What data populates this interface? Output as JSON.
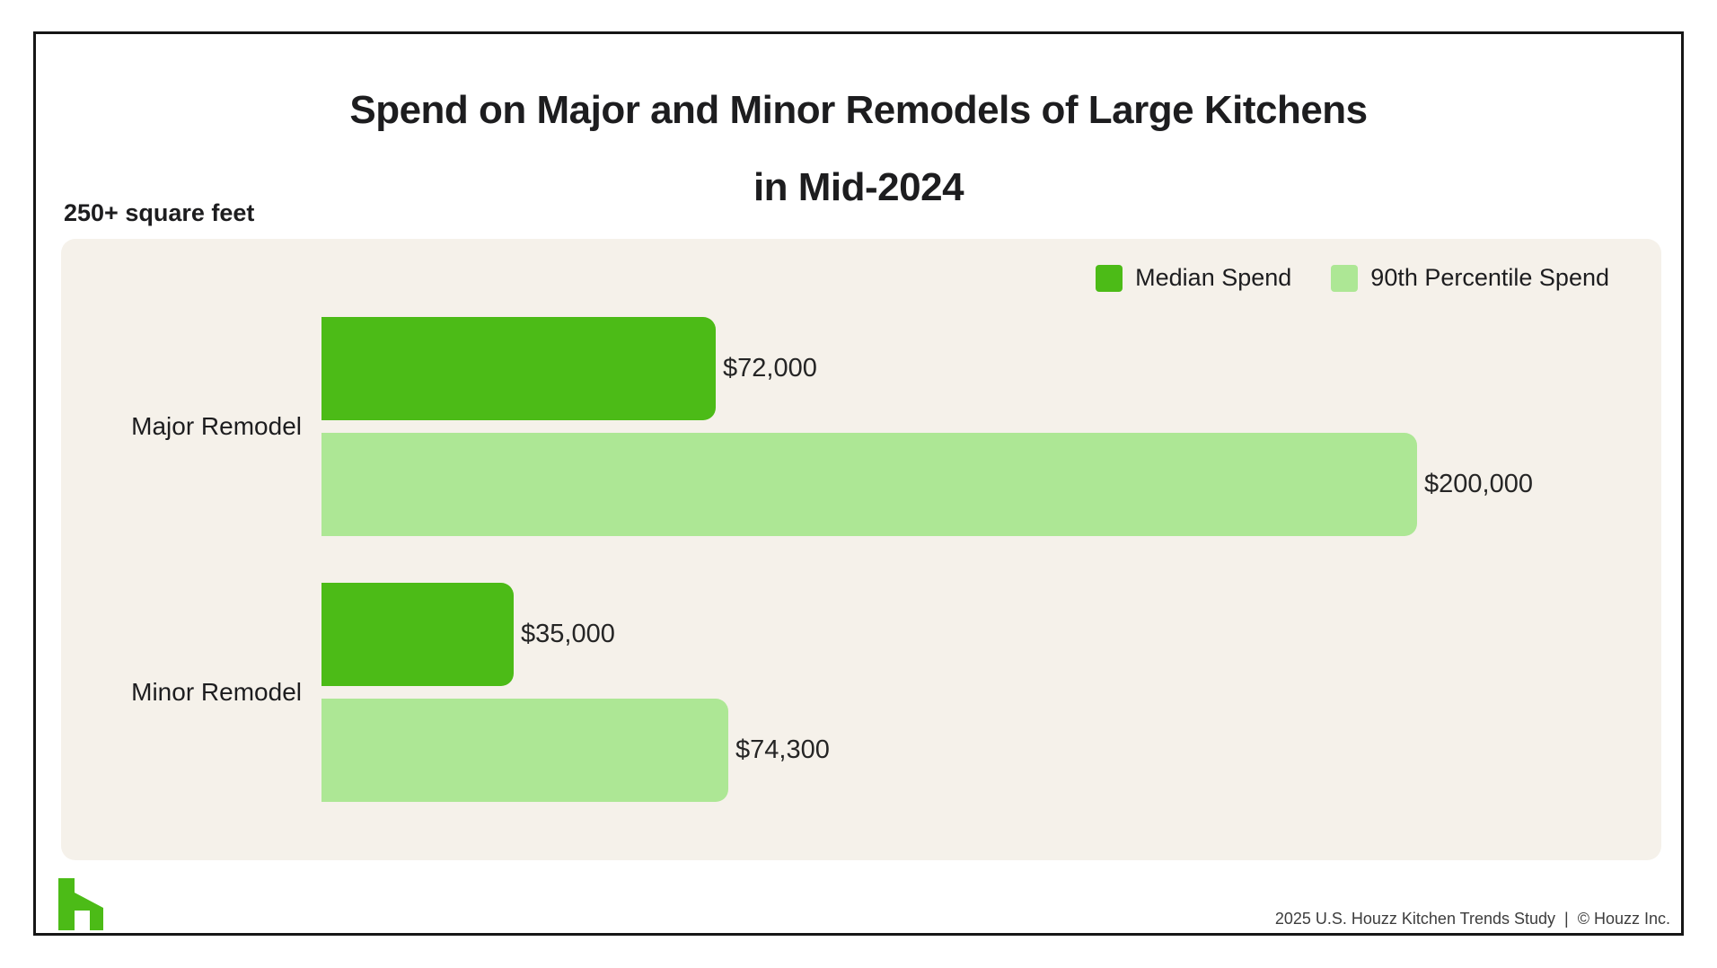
{
  "page": {
    "title_line1": "Spend on Major and Minor Remodels of Large Kitchens",
    "title_line2": "in Mid-2024",
    "subtitle": "250+ square feet",
    "footer": "2025 U.S. Houzz Kitchen Trends Study  |  © Houzz Inc."
  },
  "colors": {
    "median_green": "#4CBB17",
    "percentile_green": "#ADE795",
    "panel_bg": "#F5F1EA",
    "logo_green": "#4CBB17"
  },
  "legend": {
    "items": [
      {
        "label": "Median Spend",
        "color": "#4CBB17"
      },
      {
        "label": "90th Percentile Spend",
        "color": "#ADE795"
      }
    ]
  },
  "chart_data": {
    "type": "bar",
    "orientation": "horizontal",
    "title": "Spend on Major and Minor Remodels of Large Kitchens in Mid-2024",
    "subtitle": "250+ square feet",
    "categories": [
      "Major Remodel",
      "Minor Remodel"
    ],
    "series": [
      {
        "name": "Median Spend",
        "color": "#4CBB17",
        "values": [
          72000,
          35000
        ],
        "labels": [
          "$72,000",
          "$35,000"
        ]
      },
      {
        "name": "90th Percentile Spend",
        "color": "#ADE795",
        "values": [
          200000,
          74300
        ],
        "labels": [
          "$200,000",
          "$74,300"
        ]
      }
    ],
    "xlim": [
      0,
      200000
    ],
    "grid": false,
    "legend_position": "top-right"
  }
}
